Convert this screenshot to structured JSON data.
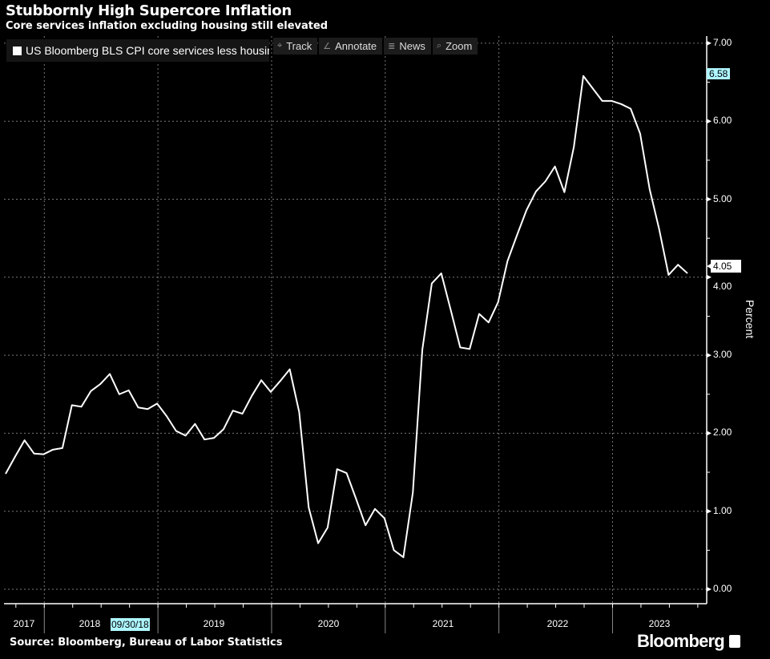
{
  "header": {
    "title": "Stubbornly High Supercore Inflation",
    "subtitle": "Core services inflation excluding housing still elevated"
  },
  "toolbar": {
    "items": [
      {
        "label": "Track",
        "icon": "crosshair-icon",
        "glyph": "⌖"
      },
      {
        "label": "Annotate",
        "icon": "pencil-icon",
        "glyph": "∠"
      },
      {
        "label": "News",
        "icon": "news-icon",
        "glyph": "≣"
      },
      {
        "label": "Zoom",
        "icon": "magnifier-icon",
        "glyph": "⌕"
      }
    ]
  },
  "footer": {
    "source": "Source: Bloomberg, Bureau of Labor Statistics",
    "brand": "Bloomberg"
  },
  "tags": {
    "hover_date": "09/30/18",
    "high": "6.58",
    "last": "4.05"
  },
  "colors": {
    "line": "#ffffff",
    "tag": "#aef6ff",
    "background": "#000000"
  },
  "chart_data": {
    "type": "line",
    "title": "Stubbornly High Supercore Inflation",
    "subtitle": "Core services inflation excluding housing still elevated",
    "ylabel": "Percent",
    "xlabel": "",
    "ylim": [
      0,
      7
    ],
    "yticks": [
      "0.00",
      "1.00",
      "2.00",
      "3.00",
      "4.00",
      "5.00",
      "6.00",
      "7.00"
    ],
    "x_start": "2017-09",
    "x_frequency": "monthly",
    "xtick_labels": [
      "2017",
      "2018",
      "2019",
      "2020",
      "2021",
      "2022",
      "2023"
    ],
    "grid": true,
    "legend_position": "top-left",
    "series": [
      {
        "name": "US Bloomberg BLS CPI core services less housing",
        "values": [
          1.48,
          1.7,
          1.91,
          1.74,
          1.73,
          1.79,
          1.81,
          2.36,
          2.34,
          2.54,
          2.63,
          2.76,
          2.5,
          2.55,
          2.33,
          2.31,
          2.38,
          2.22,
          2.03,
          1.97,
          2.12,
          1.92,
          1.94,
          2.05,
          2.29,
          2.25,
          2.48,
          2.68,
          2.53,
          2.67,
          2.82,
          2.27,
          1.05,
          0.59,
          0.79,
          1.54,
          1.49,
          1.16,
          0.82,
          1.03,
          0.91,
          0.5,
          0.41,
          1.24,
          3.07,
          3.92,
          4.05,
          3.58,
          3.1,
          3.08,
          3.53,
          3.42,
          3.68,
          4.21,
          4.54,
          4.86,
          5.1,
          5.23,
          5.42,
          5.09,
          5.67,
          6.58,
          6.42,
          6.26,
          6.26,
          6.22,
          6.16,
          5.84,
          5.13,
          4.62,
          4.03,
          4.16,
          4.05
        ]
      }
    ]
  }
}
